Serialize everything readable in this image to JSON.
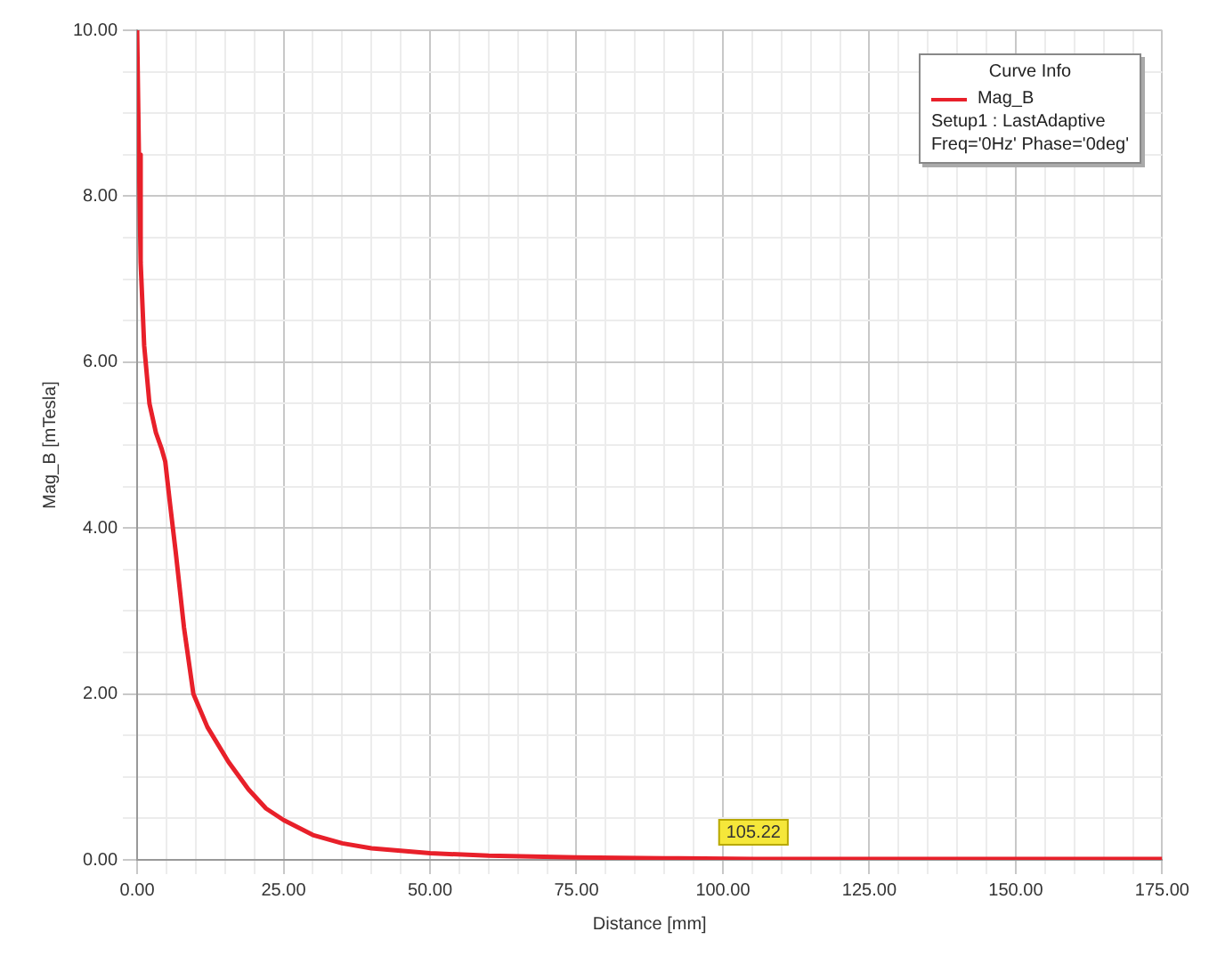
{
  "chart_data": {
    "type": "line",
    "xlabel": "Distance [mm]",
    "ylabel": "Mag_B [mTesla]",
    "legend_title": "Curve Info",
    "legend": "top right",
    "grid": true,
    "marker": "none",
    "line_style": "solid",
    "xlim": [
      0,
      175
    ],
    "ylim": [
      0,
      10
    ],
    "xticks": [
      {
        "value": 0,
        "label": "0.00"
      },
      {
        "value": 5,
        "label": null
      },
      {
        "value": 10,
        "label": null
      },
      {
        "value": 15,
        "label": null
      },
      {
        "value": 20,
        "label": null
      },
      {
        "value": 25,
        "label": "25.00"
      },
      {
        "value": 30,
        "label": null
      },
      {
        "value": 35,
        "label": null
      },
      {
        "value": 40,
        "label": null
      },
      {
        "value": 45,
        "label": null
      },
      {
        "value": 50,
        "label": "50.00"
      },
      {
        "value": 55,
        "label": null
      },
      {
        "value": 60,
        "label": null
      },
      {
        "value": 65,
        "label": null
      },
      {
        "value": 70,
        "label": null
      },
      {
        "value": 75,
        "label": "75.00"
      },
      {
        "value": 80,
        "label": null
      },
      {
        "value": 85,
        "label": null
      },
      {
        "value": 90,
        "label": null
      },
      {
        "value": 95,
        "label": null
      },
      {
        "value": 100,
        "label": "100.00"
      },
      {
        "value": 105,
        "label": null
      },
      {
        "value": 110,
        "label": null
      },
      {
        "value": 115,
        "label": null
      },
      {
        "value": 120,
        "label": null
      },
      {
        "value": 125,
        "label": "125.00"
      },
      {
        "value": 130,
        "label": null
      },
      {
        "value": 135,
        "label": null
      },
      {
        "value": 140,
        "label": null
      },
      {
        "value": 145,
        "label": null
      },
      {
        "value": 150,
        "label": "150.00"
      },
      {
        "value": 155,
        "label": null
      },
      {
        "value": 160,
        "label": null
      },
      {
        "value": 165,
        "label": null
      },
      {
        "value": 170,
        "label": null
      },
      {
        "value": 175,
        "label": "175.00"
      }
    ],
    "yticks": [
      {
        "value": 0,
        "label": "0.00"
      },
      {
        "value": 0.5,
        "label": null
      },
      {
        "value": 1,
        "label": null
      },
      {
        "value": 1.5,
        "label": null
      },
      {
        "value": 2,
        "label": "2.00"
      },
      {
        "value": 2.5,
        "label": null
      },
      {
        "value": 3,
        "label": null
      },
      {
        "value": 3.5,
        "label": null
      },
      {
        "value": 4,
        "label": "4.00"
      },
      {
        "value": 4.5,
        "label": null
      },
      {
        "value": 5,
        "label": null
      },
      {
        "value": 5.5,
        "label": null
      },
      {
        "value": 6,
        "label": "6.00"
      },
      {
        "value": 6.5,
        "label": null
      },
      {
        "value": 7,
        "label": null
      },
      {
        "value": 7.5,
        "label": null
      },
      {
        "value": 8,
        "label": "8.00"
      },
      {
        "value": 8.5,
        "label": null
      },
      {
        "value": 9,
        "label": null
      },
      {
        "value": 9.5,
        "label": null
      },
      {
        "value": 10,
        "label": "10.00"
      }
    ],
    "series": [
      {
        "name": "Mag_B",
        "color": "#e8202a",
        "x": [
          0,
          0.3,
          0.6,
          1.2,
          2.1,
          3.2,
          4.2,
          4.8,
          5.6,
          6.6,
          8,
          9.6,
          12,
          15.6,
          19,
          22,
          25,
          30,
          35,
          40,
          50,
          60,
          75,
          90,
          105.22,
          125,
          150,
          175
        ],
        "values": [
          10,
          8.5,
          7.2,
          6.2,
          5.5,
          5.15,
          4.95,
          4.8,
          4.3,
          3.7,
          2.8,
          2.0,
          1.6,
          1.18,
          0.85,
          0.62,
          0.48,
          0.3,
          0.2,
          0.14,
          0.08,
          0.05,
          0.03,
          0.02,
          0.01,
          0.01,
          0.01,
          0.01
        ]
      }
    ],
    "annotations": [
      "Setup1 : LastAdaptive",
      "Freq='0Hz' Phase='0deg'",
      {
        "text": "105.22",
        "x": 105.22,
        "y": 0.01
      }
    ]
  }
}
